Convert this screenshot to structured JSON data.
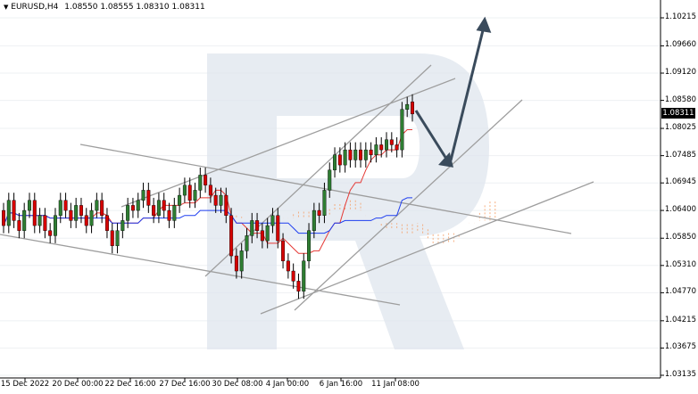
{
  "header": {
    "symbol": "EURUSD,H4",
    "ohlc": "1.08550 1.08555 1.08310 1.08311",
    "menu_arrow": "triangle-down-icon"
  },
  "price_axis": {
    "labels": [
      "1.10215",
      "1.09660",
      "1.09120",
      "1.08580",
      "1.08025",
      "1.07485",
      "1.06945",
      "1.06400",
      "1.05850",
      "1.05310",
      "1.04770",
      "1.04215",
      "1.03675",
      "1.03135"
    ],
    "current_price": "1.08311"
  },
  "time_axis": {
    "labels": [
      "15 Dec 2022",
      "20 Dec 00:00",
      "22 Dec 16:00",
      "27 Dec 16:00",
      "30 Dec 08:00",
      "4 Jan 00:00",
      "6 Jan 16:00",
      "11 Jan 08:00"
    ]
  },
  "colors": {
    "bull": "#2e7d32",
    "bear": "#d50000",
    "tenkan": "#e53935",
    "kijun": "#1e3ef0",
    "cloud": "#f5a26b",
    "trendline": "#9e9e9e",
    "arrow": "#3a4b5c",
    "watermark": "#dfe6ee"
  },
  "chart_data": {
    "type": "candlestick",
    "symbol": "EURUSD",
    "timeframe": "H4",
    "ylim": [
      1.03135,
      1.10215
    ],
    "last": {
      "open": 1.0855,
      "high": 1.08555,
      "low": 1.0831,
      "close": 1.08311
    },
    "candles": [
      {
        "o": 1.064,
        "c": 1.061
      },
      {
        "o": 1.061,
        "c": 1.066
      },
      {
        "o": 1.066,
        "c": 1.062
      },
      {
        "o": 1.062,
        "c": 1.06
      },
      {
        "o": 1.06,
        "c": 1.064
      },
      {
        "o": 1.064,
        "c": 1.066
      },
      {
        "o": 1.066,
        "c": 1.061
      },
      {
        "o": 1.061,
        "c": 1.063
      },
      {
        "o": 1.063,
        "c": 1.06
      },
      {
        "o": 1.06,
        "c": 1.059
      },
      {
        "o": 1.059,
        "c": 1.063
      },
      {
        "o": 1.063,
        "c": 1.066
      },
      {
        "o": 1.066,
        "c": 1.064
      },
      {
        "o": 1.064,
        "c": 1.062
      },
      {
        "o": 1.062,
        "c": 1.065
      },
      {
        "o": 1.065,
        "c": 1.063
      },
      {
        "o": 1.063,
        "c": 1.061
      },
      {
        "o": 1.061,
        "c": 1.064
      },
      {
        "o": 1.064,
        "c": 1.066
      },
      {
        "o": 1.066,
        "c": 1.063
      },
      {
        "o": 1.063,
        "c": 1.06
      },
      {
        "o": 1.06,
        "c": 1.057
      },
      {
        "o": 1.057,
        "c": 1.06
      },
      {
        "o": 1.06,
        "c": 1.062
      },
      {
        "o": 1.062,
        "c": 1.065
      },
      {
        "o": 1.065,
        "c": 1.064
      },
      {
        "o": 1.064,
        "c": 1.066
      },
      {
        "o": 1.066,
        "c": 1.068
      },
      {
        "o": 1.068,
        "c": 1.065
      },
      {
        "o": 1.065,
        "c": 1.063
      },
      {
        "o": 1.063,
        "c": 1.066
      },
      {
        "o": 1.066,
        "c": 1.064
      },
      {
        "o": 1.064,
        "c": 1.062
      },
      {
        "o": 1.062,
        "c": 1.065
      },
      {
        "o": 1.065,
        "c": 1.067
      },
      {
        "o": 1.067,
        "c": 1.069
      },
      {
        "o": 1.069,
        "c": 1.066
      },
      {
        "o": 1.066,
        "c": 1.068
      },
      {
        "o": 1.068,
        "c": 1.071
      },
      {
        "o": 1.071,
        "c": 1.069
      },
      {
        "o": 1.069,
        "c": 1.067
      },
      {
        "o": 1.067,
        "c": 1.065
      },
      {
        "o": 1.065,
        "c": 1.067
      },
      {
        "o": 1.067,
        "c": 1.063
      },
      {
        "o": 1.063,
        "c": 1.055
      },
      {
        "o": 1.055,
        "c": 1.052
      },
      {
        "o": 1.052,
        "c": 1.056
      },
      {
        "o": 1.056,
        "c": 1.059
      },
      {
        "o": 1.059,
        "c": 1.062
      },
      {
        "o": 1.062,
        "c": 1.06
      },
      {
        "o": 1.06,
        "c": 1.058
      },
      {
        "o": 1.058,
        "c": 1.061
      },
      {
        "o": 1.061,
        "c": 1.063
      },
      {
        "o": 1.063,
        "c": 1.058
      },
      {
        "o": 1.058,
        "c": 1.054
      },
      {
        "o": 1.054,
        "c": 1.052
      },
      {
        "o": 1.052,
        "c": 1.05
      },
      {
        "o": 1.05,
        "c": 1.048
      },
      {
        "o": 1.048,
        "c": 1.054
      },
      {
        "o": 1.054,
        "c": 1.06
      },
      {
        "o": 1.06,
        "c": 1.064
      },
      {
        "o": 1.064,
        "c": 1.063
      },
      {
        "o": 1.063,
        "c": 1.068
      },
      {
        "o": 1.068,
        "c": 1.072
      },
      {
        "o": 1.072,
        "c": 1.075
      },
      {
        "o": 1.075,
        "c": 1.073
      },
      {
        "o": 1.073,
        "c": 1.076
      },
      {
        "o": 1.076,
        "c": 1.074
      },
      {
        "o": 1.074,
        "c": 1.076
      },
      {
        "o": 1.076,
        "c": 1.074
      },
      {
        "o": 1.074,
        "c": 1.076
      },
      {
        "o": 1.076,
        "c": 1.075
      },
      {
        "o": 1.075,
        "c": 1.077
      },
      {
        "o": 1.077,
        "c": 1.076
      },
      {
        "o": 1.076,
        "c": 1.078
      },
      {
        "o": 1.078,
        "c": 1.077
      },
      {
        "o": 1.077,
        "c": 1.076
      },
      {
        "o": 1.076,
        "c": 1.084
      },
      {
        "o": 1.084,
        "c": 1.085
      },
      {
        "o": 1.0855,
        "c": 1.08311
      }
    ]
  }
}
